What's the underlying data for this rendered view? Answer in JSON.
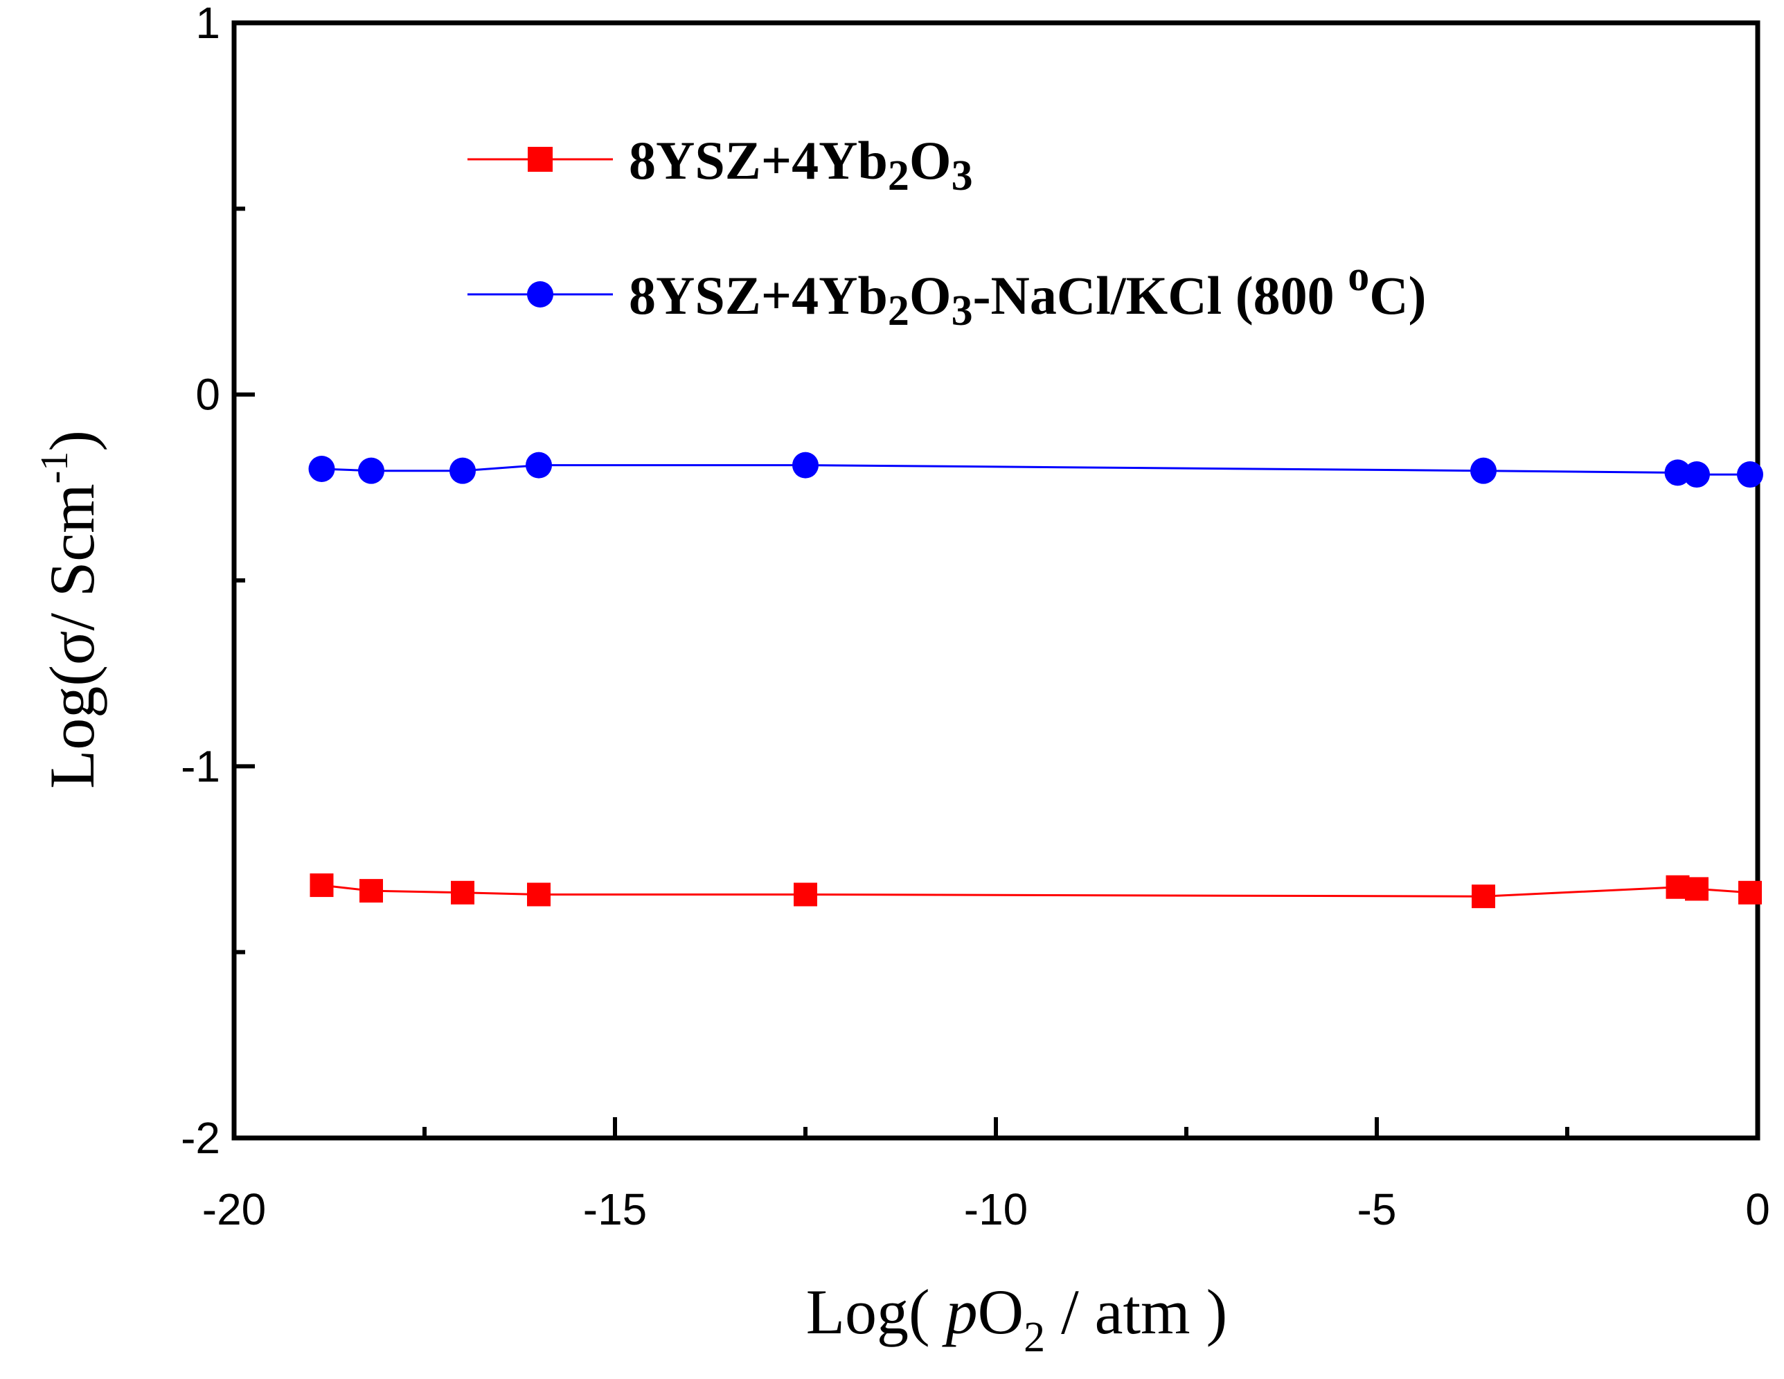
{
  "chart_data": {
    "type": "line",
    "title": "",
    "xlabel": {
      "pre": "Log( ",
      "italic": "p",
      "main": "O",
      "sub": "2",
      "post": " / atm )"
    },
    "ylabel": {
      "main": "Log(σ/ Scm",
      "sup": "-1",
      "post": ")"
    },
    "xlim": [
      -20,
      0
    ],
    "ylim": [
      -2,
      1
    ],
    "x_ticks": [
      -20,
      -15,
      -10,
      -5,
      0
    ],
    "x_tick_labels": [
      "-20",
      "-15",
      "-10",
      "-5",
      "0"
    ],
    "x_minor_ticks": [
      -17.5,
      -12.5,
      -7.5,
      -2.5
    ],
    "y_ticks": [
      -2,
      -1,
      0,
      1
    ],
    "y_tick_labels": [
      "-2",
      "-1",
      "0",
      "1"
    ],
    "y_minor_ticks": [
      -1.5,
      -0.5,
      0.5
    ],
    "legend_position": "top-center",
    "series": [
      {
        "name": "8YSZ+4Yb2O3",
        "label_parts": {
          "a": "8YSZ+4Yb",
          "s1": "2",
          "b": "O",
          "s2": "3",
          "c": ""
        },
        "color": "#ff0000",
        "marker": "square",
        "x": [
          -18.85,
          -18.2,
          -17.0,
          -16.0,
          -12.5,
          -3.6,
          -1.05,
          -0.8,
          -0.1
        ],
        "y": [
          -1.32,
          -1.335,
          -1.34,
          -1.345,
          -1.345,
          -1.35,
          -1.325,
          -1.33,
          -1.34
        ]
      },
      {
        "name": "8YSZ+4Yb2O3-NaCl/KCl (800 oC)",
        "label_parts": {
          "a": "8YSZ+4Yb",
          "s1": "2",
          "b": "O",
          "s2": "3",
          "c": "-NaCl/KCl (800 ",
          "sup": "o",
          "d": "C)"
        },
        "color": "#0000ff",
        "marker": "circle",
        "x": [
          -18.85,
          -18.2,
          -17.0,
          -16.0,
          -12.5,
          -3.6,
          -1.05,
          -0.8,
          -0.1
        ],
        "y": [
          -0.2,
          -0.205,
          -0.205,
          -0.19,
          -0.19,
          -0.205,
          -0.21,
          -0.215,
          -0.215
        ]
      }
    ]
  }
}
